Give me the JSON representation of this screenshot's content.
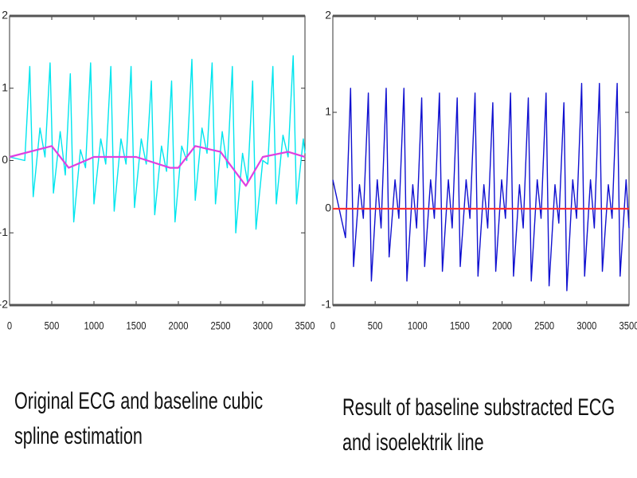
{
  "chart_data": [
    {
      "type": "line",
      "caption": "Original ECG and baseline cubic spline estimation",
      "xlim": [
        0,
        3500
      ],
      "ylim": [
        -2,
        2
      ],
      "xticks": [
        0,
        500,
        1000,
        1500,
        2000,
        2500,
        3000,
        3500
      ],
      "yticks": [
        -2,
        -1,
        0,
        1,
        2
      ],
      "series": [
        {
          "color": "#00e5ee",
          "x": [
            0,
            180,
            240,
            280,
            360,
            420,
            480,
            520,
            600,
            660,
            720,
            760,
            840,
            900,
            960,
            1000,
            1080,
            1140,
            1200,
            1240,
            1320,
            1380,
            1440,
            1480,
            1560,
            1620,
            1680,
            1720,
            1800,
            1860,
            1920,
            1960,
            2040,
            2100,
            2160,
            2200,
            2280,
            2340,
            2400,
            2440,
            2520,
            2580,
            2640,
            2680,
            2760,
            2820,
            2880,
            2920,
            3000,
            3060,
            3120,
            3160,
            3240,
            3300,
            3360,
            3400,
            3480,
            3500
          ],
          "values": [
            0.05,
            0.0,
            1.3,
            -0.5,
            0.45,
            0.05,
            1.35,
            -0.45,
            0.4,
            -0.2,
            1.2,
            -0.85,
            0.15,
            -0.1,
            1.35,
            -0.6,
            0.3,
            -0.05,
            1.3,
            -0.7,
            0.3,
            -0.05,
            1.3,
            -0.65,
            0.3,
            -0.05,
            1.1,
            -0.75,
            0.2,
            -0.15,
            1.1,
            -0.85,
            0.2,
            0,
            1.4,
            -0.55,
            0.45,
            0.1,
            1.35,
            -0.6,
            0.4,
            -0.1,
            1.3,
            -1.0,
            0.1,
            -0.3,
            1.1,
            -0.95,
            0.0,
            -0.05,
            1.3,
            -0.6,
            0.35,
            0.05,
            1.45,
            -0.6,
            0.3,
            0.1
          ]
        },
        {
          "color": "#e040e0",
          "x": [
            0,
            500,
            700,
            1000,
            1500,
            1900,
            2000,
            2200,
            2500,
            2800,
            3000,
            3300,
            3500
          ],
          "values": [
            0.05,
            0.2,
            -0.1,
            0.05,
            0.05,
            -0.1,
            -0.1,
            0.2,
            0.12,
            -0.35,
            0.05,
            0.12,
            0.05
          ]
        }
      ]
    },
    {
      "type": "line",
      "caption": "Result of baseline substracted ECG and isoelektrik line",
      "xlim": [
        0,
        3500
      ],
      "ylim": [
        -1,
        2
      ],
      "xticks": [
        0,
        500,
        1000,
        1500,
        2000,
        2500,
        3000,
        3500
      ],
      "yticks": [
        -1,
        0,
        1,
        2
      ],
      "series": [
        {
          "color": "#1010d0",
          "x": [
            0,
            150,
            210,
            245,
            315,
            360,
            420,
            455,
            525,
            570,
            630,
            665,
            735,
            780,
            840,
            875,
            945,
            990,
            1050,
            1085,
            1155,
            1200,
            1260,
            1295,
            1365,
            1410,
            1470,
            1505,
            1575,
            1620,
            1680,
            1715,
            1785,
            1830,
            1890,
            1925,
            1995,
            2040,
            2100,
            2135,
            2205,
            2250,
            2310,
            2345,
            2415,
            2460,
            2520,
            2555,
            2625,
            2670,
            2730,
            2765,
            2835,
            2880,
            2940,
            2975,
            3045,
            3090,
            3150,
            3185,
            3255,
            3300,
            3360,
            3395,
            3465,
            3500
          ],
          "values": [
            0.3,
            -0.3,
            1.25,
            -0.6,
            0.25,
            -0.1,
            1.2,
            -0.75,
            0.3,
            -0.2,
            1.25,
            -0.5,
            0.3,
            -0.1,
            1.25,
            -0.75,
            0.25,
            -0.2,
            1.15,
            -0.6,
            0.3,
            -0.1,
            1.2,
            -0.65,
            0.3,
            -0.2,
            1.15,
            -0.6,
            0.3,
            -0.1,
            1.2,
            -0.7,
            0.25,
            -0.2,
            1.1,
            -0.65,
            0.3,
            -0.1,
            1.2,
            -0.7,
            0.25,
            -0.2,
            1.15,
            -0.75,
            0.3,
            -0.1,
            1.2,
            -0.8,
            0.25,
            -0.15,
            1.1,
            -0.85,
            0.3,
            -0.1,
            1.3,
            -0.7,
            0.3,
            -0.2,
            1.3,
            -0.65,
            0.25,
            -0.1,
            1.3,
            -0.7,
            0.3,
            -0.2
          ]
        },
        {
          "color": "#ff3030",
          "x": [
            0,
            3500
          ],
          "values": [
            0,
            0
          ]
        }
      ]
    }
  ]
}
